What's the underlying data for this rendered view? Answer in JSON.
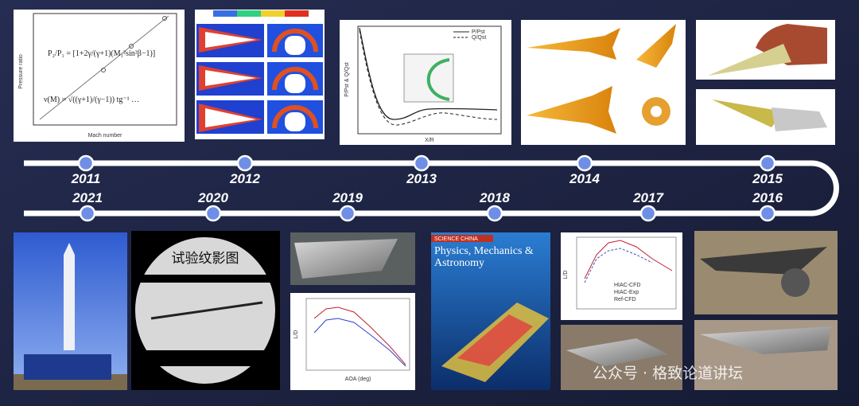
{
  "years": [
    "2011",
    "2012",
    "2013",
    "2014",
    "2015",
    "2016",
    "2017",
    "2018",
    "2019",
    "2020",
    "2021"
  ],
  "panels": {
    "theory_chart": {
      "y_label": "Pressure ratio",
      "x_label": "Mach number"
    },
    "pressure_chart": {
      "y_label": "P/Pst & Q/Qst",
      "x_label": "X/R",
      "legend": [
        "P/Pst",
        "Q/Qst"
      ]
    },
    "ld_chart": {
      "y_label": "L/D",
      "legend": [
        "HIAC-CFD",
        "HIAC-Exp",
        "Ref-CFD"
      ]
    },
    "aoa_chart": {
      "y_label": "L/D",
      "x_label": "AOA (deg)"
    },
    "schlieren_label": "试验纹影图",
    "journal": {
      "header": "SCIENCE CHINA",
      "title": "Physics, Mechanics & Astronomy"
    }
  },
  "watermark": "公众号 · 格致论道讲坛"
}
